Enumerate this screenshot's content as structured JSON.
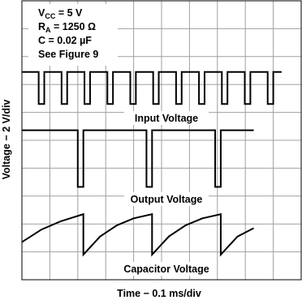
{
  "chart_data": {
    "type": "line",
    "xlabel": "Time − 0.1 ms/div",
    "ylabel": "Voltage − 2 V/div",
    "annotations": [
      [
        "V",
        "CC",
        " = 5 V"
      ],
      [
        "R",
        "A",
        " = 1250 Ω"
      ],
      [
        "C = 0.02 µF"
      ],
      [
        "See Figure 9"
      ]
    ],
    "xlim": [
      0,
      10
    ],
    "ylim": [
      0,
      10
    ],
    "divisions": [
      10,
      10
    ],
    "grid": true,
    "series": [
      {
        "name": "Input Voltage",
        "color": "#000000",
        "x": [
          0,
          0.6,
          0.6,
          0.8,
          0.8,
          1.42,
          1.42,
          1.62,
          1.62,
          2.24,
          2.24,
          2.44,
          2.44,
          3.06,
          3.06,
          3.26,
          3.26,
          3.88,
          3.88,
          4.08,
          4.08,
          4.7,
          4.7,
          4.9,
          4.9,
          5.52,
          5.52,
          5.72,
          5.72,
          6.34,
          6.34,
          6.54,
          6.54,
          7.16,
          7.16,
          7.36,
          7.36,
          7.98,
          7.98,
          8.18,
          8.18,
          8.8,
          8.8,
          9.0,
          9.0,
          9.3
        ],
        "values": [
          7.45,
          7.45,
          6.3,
          6.3,
          7.45,
          7.45,
          6.3,
          6.3,
          7.45,
          7.45,
          6.3,
          6.3,
          7.45,
          7.45,
          6.3,
          6.3,
          7.45,
          7.45,
          6.3,
          6.3,
          7.45,
          7.45,
          6.3,
          6.3,
          7.45,
          7.45,
          6.3,
          6.3,
          7.45,
          7.45,
          6.3,
          6.3,
          7.45,
          7.45,
          6.3,
          6.3,
          7.45,
          7.45,
          6.3,
          6.3,
          7.45,
          7.45,
          6.3,
          6.3,
          7.45,
          7.45
        ]
      },
      {
        "name": "Output Voltage",
        "color": "#000000",
        "x": [
          0,
          2.0,
          2.0,
          2.2,
          2.2,
          4.46,
          4.46,
          4.66,
          4.66,
          6.92,
          6.92,
          7.12,
          7.12,
          8.3
        ],
        "values": [
          5.36,
          5.36,
          3.33,
          3.33,
          5.36,
          5.36,
          3.33,
          3.33,
          5.36,
          5.36,
          3.33,
          3.33,
          5.36,
          5.36
        ]
      },
      {
        "name": "Capacitor Voltage",
        "color": "#000000",
        "x": [
          0,
          0.7,
          1.4,
          2.2,
          2.2,
          2.8,
          3.4,
          4.0,
          4.66,
          4.66,
          5.26,
          5.86,
          6.46,
          7.12,
          7.12,
          7.72,
          8.3
        ],
        "values": [
          1.35,
          1.8,
          2.1,
          2.35,
          0.9,
          1.55,
          1.95,
          2.2,
          2.35,
          0.9,
          1.55,
          1.95,
          2.2,
          2.35,
          0.9,
          1.55,
          1.85
        ]
      }
    ]
  }
}
